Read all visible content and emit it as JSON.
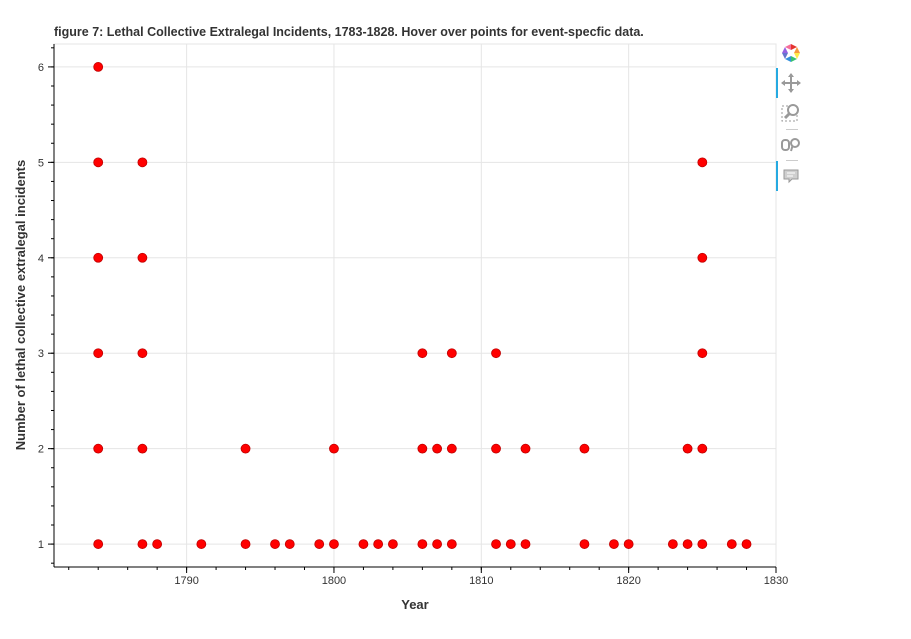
{
  "chart_data": {
    "type": "scatter",
    "title": "figure 7: Lethal Collective Extralegal Incidents, 1783-1828. Hover over points for event-specfic data.",
    "xlabel": "Year",
    "ylabel": "Number of lethal collective extralegal incidents",
    "xlim": [
      1781,
      1830
    ],
    "ylim": [
      0.76,
      6.24
    ],
    "xticks": [
      1790,
      1800,
      1810,
      1820,
      1830
    ],
    "yticks": [
      1,
      2,
      3,
      4,
      5,
      6
    ],
    "grid": true,
    "marker_color": "#ff0000",
    "marker_edge_color": "#c00000",
    "points": [
      {
        "x": 1784,
        "y": 6
      },
      {
        "x": 1784,
        "y": 5
      },
      {
        "x": 1784,
        "y": 4
      },
      {
        "x": 1784,
        "y": 3
      },
      {
        "x": 1784,
        "y": 2
      },
      {
        "x": 1784,
        "y": 1
      },
      {
        "x": 1787,
        "y": 5
      },
      {
        "x": 1787,
        "y": 4
      },
      {
        "x": 1787,
        "y": 3
      },
      {
        "x": 1787,
        "y": 2
      },
      {
        "x": 1787,
        "y": 1
      },
      {
        "x": 1788,
        "y": 1
      },
      {
        "x": 1791,
        "y": 1
      },
      {
        "x": 1794,
        "y": 2
      },
      {
        "x": 1794,
        "y": 1
      },
      {
        "x": 1796,
        "y": 1
      },
      {
        "x": 1797,
        "y": 1
      },
      {
        "x": 1799,
        "y": 1
      },
      {
        "x": 1800,
        "y": 2
      },
      {
        "x": 1800,
        "y": 1
      },
      {
        "x": 1802,
        "y": 1
      },
      {
        "x": 1803,
        "y": 1
      },
      {
        "x": 1804,
        "y": 1
      },
      {
        "x": 1806,
        "y": 3
      },
      {
        "x": 1806,
        "y": 2
      },
      {
        "x": 1806,
        "y": 1
      },
      {
        "x": 1807,
        "y": 2
      },
      {
        "x": 1807,
        "y": 1
      },
      {
        "x": 1808,
        "y": 3
      },
      {
        "x": 1808,
        "y": 2
      },
      {
        "x": 1808,
        "y": 1
      },
      {
        "x": 1811,
        "y": 3
      },
      {
        "x": 1811,
        "y": 2
      },
      {
        "x": 1811,
        "y": 1
      },
      {
        "x": 1812,
        "y": 1
      },
      {
        "x": 1813,
        "y": 2
      },
      {
        "x": 1813,
        "y": 1
      },
      {
        "x": 1817,
        "y": 2
      },
      {
        "x": 1817,
        "y": 1
      },
      {
        "x": 1819,
        "y": 1
      },
      {
        "x": 1820,
        "y": 1
      },
      {
        "x": 1823,
        "y": 1
      },
      {
        "x": 1824,
        "y": 2
      },
      {
        "x": 1824,
        "y": 1
      },
      {
        "x": 1825,
        "y": 5
      },
      {
        "x": 1825,
        "y": 4
      },
      {
        "x": 1825,
        "y": 3
      },
      {
        "x": 1825,
        "y": 2
      },
      {
        "x": 1825,
        "y": 1
      },
      {
        "x": 1827,
        "y": 1
      },
      {
        "x": 1828,
        "y": 1
      }
    ]
  },
  "toolbar": {
    "tools": [
      {
        "name": "bokeh-logo-icon",
        "active": false
      },
      {
        "name": "pan-tool-icon",
        "active": true
      },
      {
        "name": "box-zoom-tool-icon",
        "active": false
      },
      {
        "name": "reset-tool-icon",
        "active": false
      },
      {
        "name": "hover-tool-icon",
        "active": true
      }
    ]
  }
}
